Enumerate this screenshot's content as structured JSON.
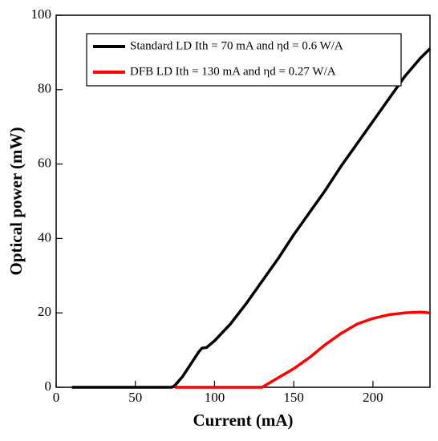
{
  "chart_data": {
    "type": "line",
    "xlabel": "Current (mA)",
    "ylabel": "Optical power (mW)",
    "x": [
      10,
      73,
      75,
      80,
      90,
      92,
      95,
      100,
      110,
      120,
      130,
      140,
      150,
      160,
      170,
      180,
      190,
      200,
      210,
      220,
      230,
      236
    ],
    "series": [
      {
        "name": "Standard LD Ith = 70 mA and ηd = 0.6 W/A",
        "color": "#000000",
        "values": [
          0,
          0,
          0.5,
          3,
          9.5,
          10.5,
          10.7,
          12.5,
          17,
          22.5,
          28.5,
          34.5,
          41,
          47,
          53,
          59.5,
          65.5,
          71.5,
          77.5,
          83.5,
          88.5,
          91
        ]
      },
      {
        "name": "DFB LD Ith = 130 mA and ηd = 0.27 W/A",
        "color": "#ff0000",
        "values": [
          null,
          null,
          0,
          0,
          0,
          0,
          0,
          0,
          0,
          0,
          0,
          2.5,
          5,
          8,
          11.5,
          14.5,
          17,
          18.5,
          19.5,
          20,
          20.2,
          20
        ]
      }
    ],
    "xlim": [
      0,
      236
    ],
    "xticks": [
      0,
      50,
      100,
      150,
      200
    ],
    "ylim": [
      0,
      100
    ],
    "yticks": [
      0,
      20,
      40,
      60,
      80,
      100
    ],
    "grid": false,
    "legend": "top-right"
  }
}
